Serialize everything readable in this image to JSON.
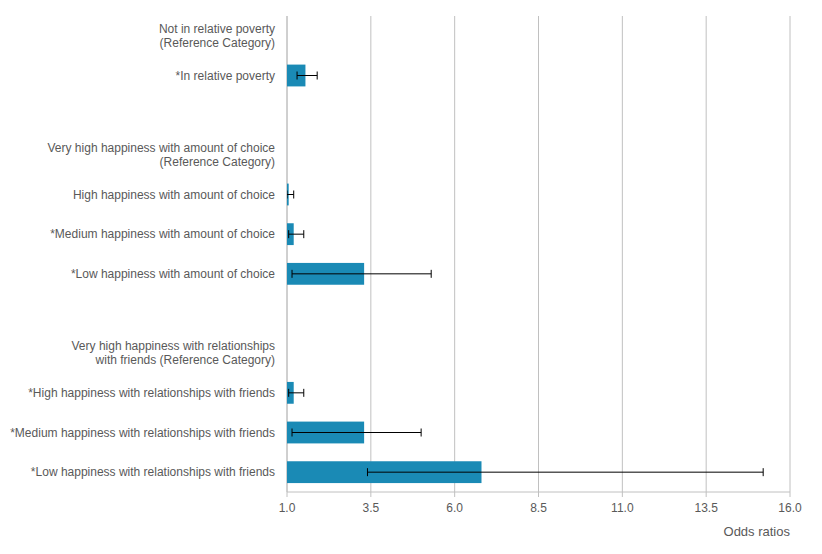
{
  "chart_data": {
    "type": "bar",
    "orientation": "horizontal",
    "categories": [
      "Not in relative poverty\n(Reference Category)",
      "*In relative poverty",
      null,
      "Very high happiness with amount of choice\n(Reference Category)",
      "High happiness with amount of choice",
      "*Medium happiness with amount of choice",
      "*Low happiness with amount of choice",
      null,
      "Very high happiness with relationships\nwith friends (Reference Category)",
      "*High happiness with relationships with friends",
      "*Medium happiness with relationships with friends",
      "*Low happiness with relationships with friends"
    ],
    "values": [
      null,
      1.55,
      null,
      null,
      1.05,
      1.2,
      3.3,
      null,
      null,
      1.2,
      3.3,
      6.8
    ],
    "ci_low": [
      null,
      1.3,
      null,
      null,
      1.0,
      1.05,
      1.15,
      null,
      null,
      1.05,
      1.15,
      3.4
    ],
    "ci_high": [
      null,
      1.9,
      null,
      null,
      1.2,
      1.5,
      5.3,
      null,
      null,
      1.5,
      5.0,
      15.2
    ],
    "color": "#1a8ab5",
    "xlim": [
      1.0,
      16.0
    ],
    "xticks": [
      {
        "value": 1.0,
        "label": "1.0"
      },
      {
        "value": 3.5,
        "label": "3.5"
      },
      {
        "value": 6.0,
        "label": "6.0"
      },
      {
        "value": 8.5,
        "label": "8.5"
      },
      {
        "value": 11.0,
        "label": "11.0"
      },
      {
        "value": 13.5,
        "label": "13.5"
      },
      {
        "value": 16.0,
        "label": "16.0"
      }
    ],
    "xlabel": "Odds ratios",
    "grid": true
  }
}
